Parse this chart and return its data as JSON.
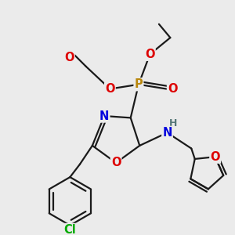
{
  "bg_color": "#ebebeb",
  "bond_color": "#1a1a1a",
  "bond_lw": 1.6,
  "atom_colors": {
    "N": "#0000dd",
    "O": "#dd0000",
    "P": "#b8860b",
    "Cl": "#00aa00",
    "H": "#557777",
    "C": "#1a1a1a"
  },
  "font_size": 9.5
}
